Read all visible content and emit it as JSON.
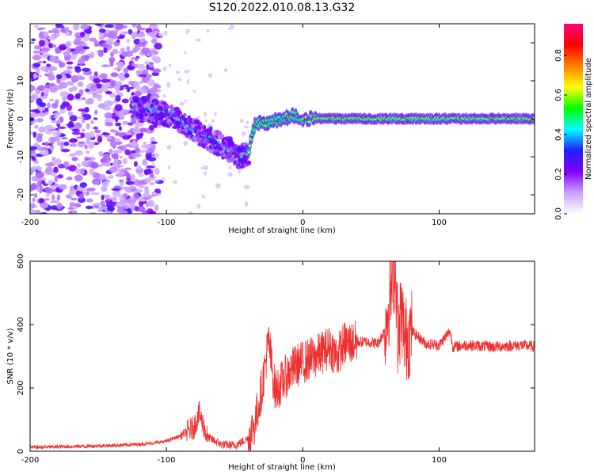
{
  "figure": {
    "title": "S120.2022.010.08.13.G32"
  },
  "chart_data": [
    {
      "type": "heatmap",
      "xlabel": "Height of straight line (km)",
      "ylabel": "Frequency (Hz)",
      "xlim": [
        -200,
        170
      ],
      "ylim": [
        -25,
        25
      ],
      "xticks": [
        -200,
        -100,
        0,
        100
      ],
      "yticks": [
        20,
        10,
        0,
        -10,
        -20
      ],
      "colorbar": {
        "label": "Normalized spectral amplitude",
        "range": [
          0,
          0.96
        ],
        "ticks": [
          0.0,
          0.2,
          0.4,
          0.6,
          0.8
        ],
        "colormap": [
          "#ffffff",
          "#c8a0ff",
          "#8000ff",
          "#2020ff",
          "#00ffff",
          "#00ff00",
          "#ffff00",
          "#ff8000",
          "#ff0000",
          "#ff0080"
        ]
      },
      "dominant_frequency_track": {
        "x": [
          -125,
          -110,
          -95,
          -85,
          -75,
          -65,
          -55,
          -45,
          -40,
          -35,
          -25,
          -15,
          -5,
          0,
          10,
          30,
          60,
          90,
          120,
          150,
          170
        ],
        "y": [
          3,
          2,
          1,
          -2,
          -4,
          -6,
          -8,
          -10,
          -9,
          -1,
          -1,
          0,
          1,
          0,
          0,
          0,
          0,
          0,
          0,
          0,
          0
        ]
      },
      "grid": false
    },
    {
      "type": "line",
      "xlabel": "Height of straight line (km)",
      "ylabel": "SNR (10 * v/v)",
      "xlim": [
        -200,
        170
      ],
      "ylim": [
        0,
        600
      ],
      "xticks": [
        -200,
        -100,
        0,
        100
      ],
      "yticks": [
        0,
        200,
        400,
        600
      ],
      "line_color": "#ee3030",
      "series": [
        {
          "x": [
            -200,
            -180,
            -160,
            -140,
            -120,
            -110,
            -100,
            -90,
            -80,
            -76,
            -70,
            -60,
            -50,
            -40,
            -35,
            -30,
            -25,
            -22,
            -20,
            -15,
            -10,
            -5,
            0,
            10,
            20,
            25,
            30,
            40,
            50,
            55,
            60,
            65,
            68,
            70,
            72,
            75,
            80,
            90,
            100,
            108,
            110,
            120,
            140,
            160,
            170
          ],
          "y": [
            12,
            14,
            16,
            18,
            22,
            26,
            32,
            48,
            75,
            120,
            45,
            22,
            18,
            40,
            90,
            200,
            350,
            240,
            190,
            220,
            250,
            270,
            280,
            300,
            330,
            300,
            340,
            345,
            345,
            340,
            380,
            520,
            600,
            330,
            450,
            350,
            380,
            340,
            335,
            380,
            330,
            335,
            330,
            335,
            330
          ]
        }
      ],
      "grid": false
    }
  ]
}
